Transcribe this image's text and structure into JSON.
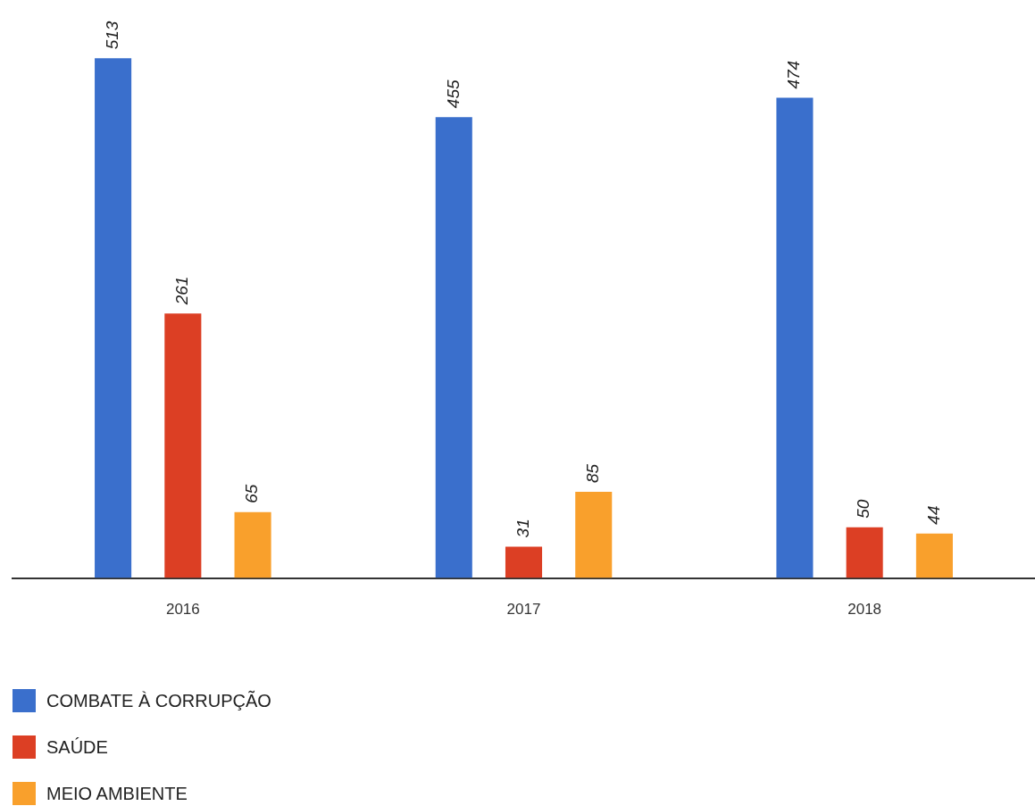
{
  "chart_data": {
    "type": "bar",
    "categories": [
      "2016",
      "2017",
      "2018"
    ],
    "series": [
      {
        "name": "COMBATE À CORRUPÇÃO",
        "color": "#3a6fcc",
        "values": [
          513,
          455,
          474
        ]
      },
      {
        "name": "SAÚDE",
        "color": "#dc3f24",
        "values": [
          261,
          31,
          50
        ]
      },
      {
        "name": "MEIO AMBIENTE",
        "color": "#f9a02c",
        "values": [
          65,
          85,
          44
        ]
      }
    ],
    "data_labels": true,
    "grid": false,
    "legend": "bottom left"
  }
}
